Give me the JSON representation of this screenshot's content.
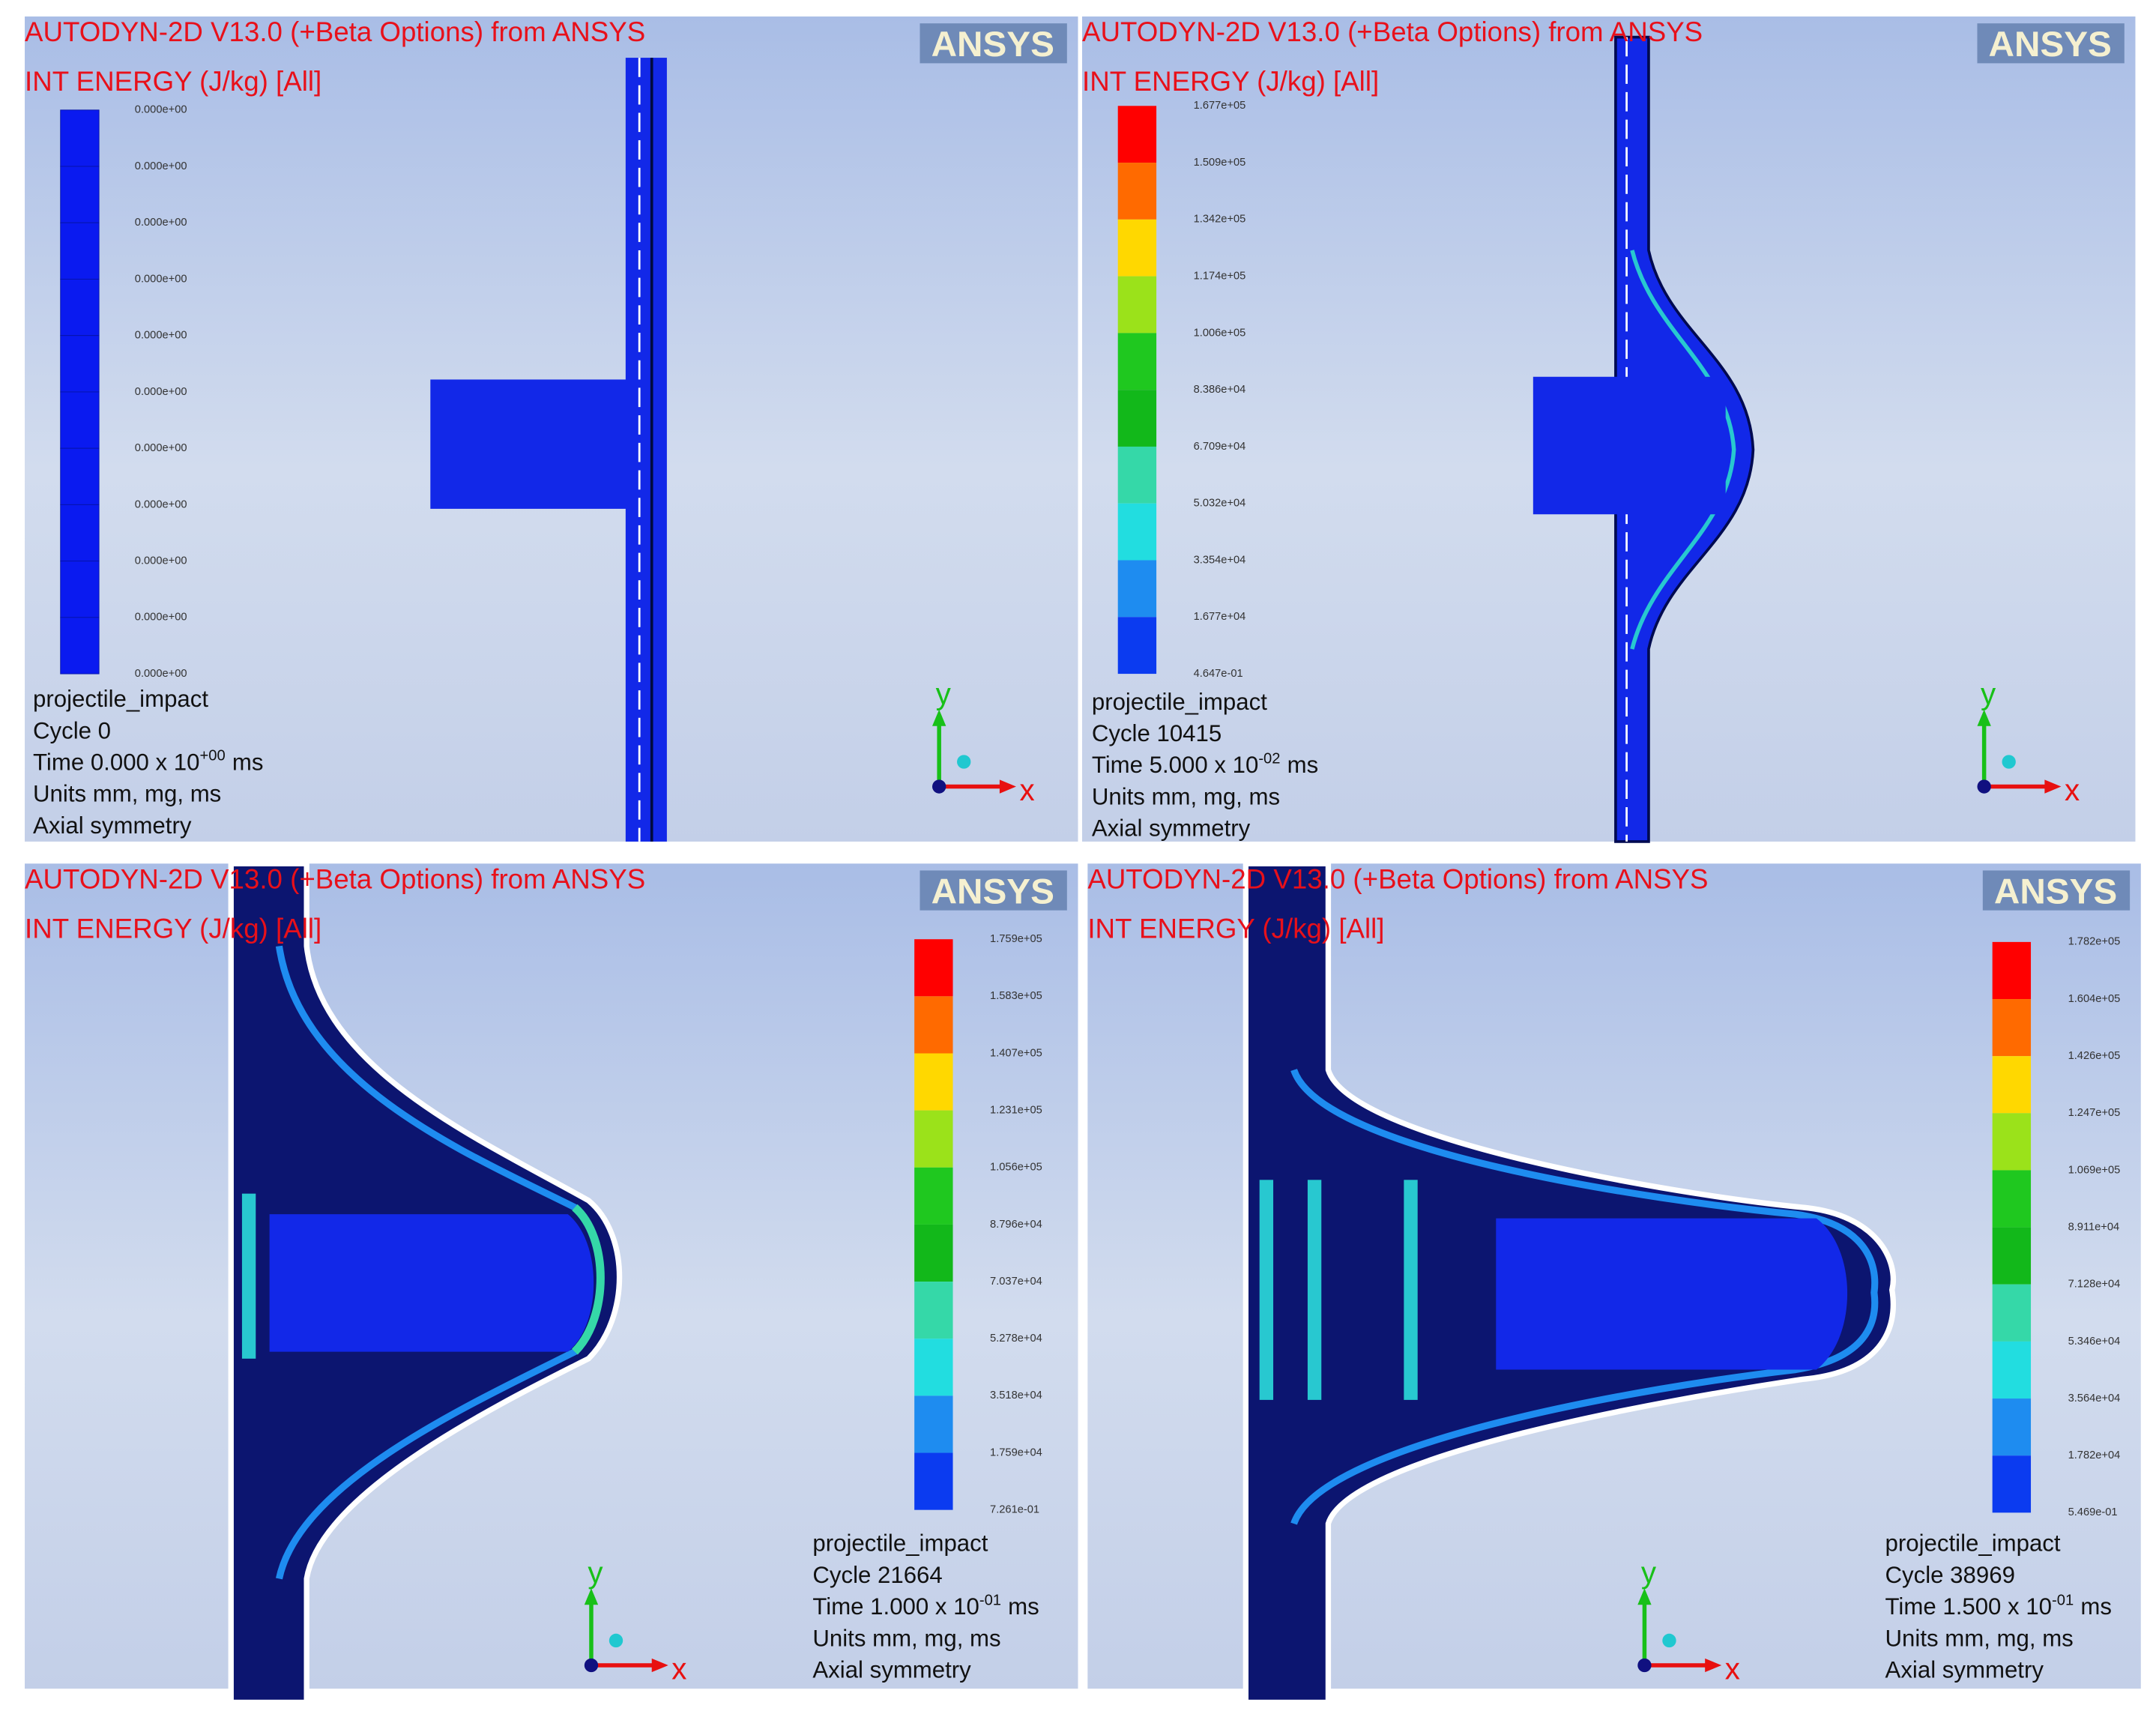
{
  "panels": [
    {
      "header": {
        "title": "AUTODYN-2D V13.0 (+Beta Options) from ANSYS",
        "variable": "INT ENERGY (J/kg) [All]",
        "logo": "ANSYS"
      },
      "legend": [
        "0.000e+00",
        "0.000e+00",
        "0.000e+00",
        "0.000e+00",
        "0.000e+00",
        "0.000e+00",
        "0.000e+00",
        "0.000e+00",
        "0.000e+00",
        "0.000e+00",
        "0.000e+00"
      ],
      "info": {
        "name": "projectile_impact",
        "cycle": "Cycle 0",
        "time_prefix": "Time 0.000 x 10",
        "time_exponent": "+00",
        "time_unit": "ms",
        "units": "Units mm, mg, ms",
        "symmetry": "Axial symmetry"
      },
      "axes": {
        "y": "y",
        "x": "x"
      }
    },
    {
      "header": {
        "title": "AUTODYN-2D V13.0 (+Beta Options) from ANSYS",
        "variable": "INT ENERGY (J/kg) [All]",
        "logo": "ANSYS"
      },
      "legend": [
        "1.677e+05",
        "1.509e+05",
        "1.342e+05",
        "1.174e+05",
        "1.006e+05",
        "8.386e+04",
        "6.709e+04",
        "5.032e+04",
        "3.354e+04",
        "1.677e+04",
        "4.647e-01"
      ],
      "info": {
        "name": "projectile_impact",
        "cycle": "Cycle 10415",
        "time_prefix": "Time 5.000 x 10",
        "time_exponent": "-02",
        "time_unit": "ms",
        "units": "Units mm, mg, ms",
        "symmetry": "Axial symmetry"
      },
      "axes": {
        "y": "y",
        "x": "x"
      }
    },
    {
      "header": {
        "title": "AUTODYN-2D V13.0 (+Beta Options) from ANSYS",
        "variable": "INT ENERGY (J/kg) [All]",
        "logo": "ANSYS"
      },
      "legend": [
        "1.759e+05",
        "1.583e+05",
        "1.407e+05",
        "1.231e+05",
        "1.056e+05",
        "8.796e+04",
        "7.037e+04",
        "5.278e+04",
        "3.518e+04",
        "1.759e+04",
        "7.261e-01"
      ],
      "info": {
        "name": "projectile_impact",
        "cycle": "Cycle 21664",
        "time_prefix": "Time 1.000 x 10",
        "time_exponent": "-01",
        "time_unit": "ms",
        "units": "Units mm, mg, ms",
        "symmetry": "Axial symmetry"
      },
      "axes": {
        "y": "y",
        "x": "x"
      }
    },
    {
      "header": {
        "title": "AUTODYN-2D V13.0 (+Beta Options) from ANSYS",
        "variable": "INT ENERGY (J/kg) [All]",
        "logo": "ANSYS"
      },
      "legend": [
        "1.782e+05",
        "1.604e+05",
        "1.426e+05",
        "1.247e+05",
        "1.069e+05",
        "8.911e+04",
        "7.128e+04",
        "5.346e+04",
        "3.564e+04",
        "1.782e+04",
        "5.469e-01"
      ],
      "info": {
        "name": "projectile_impact",
        "cycle": "Cycle 38969",
        "time_prefix": "Time 1.500 x 10",
        "time_exponent": "-01",
        "time_unit": "ms",
        "units": "Units mm, mg, ms",
        "symmetry": "Axial symmetry"
      },
      "axes": {
        "y": "y",
        "x": "x"
      }
    }
  ]
}
